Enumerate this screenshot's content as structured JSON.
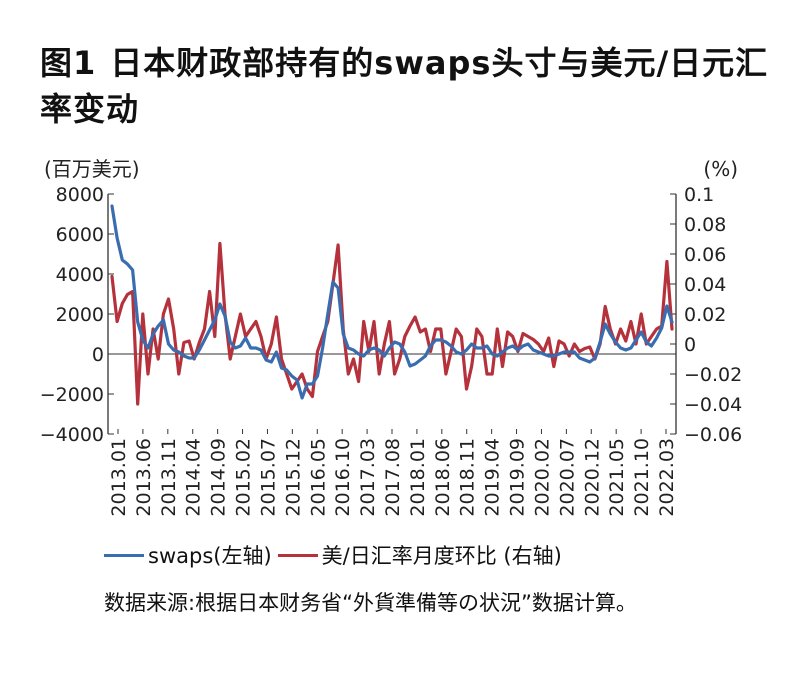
{
  "title": {
    "num": "图1",
    "text": "日本财政部持有的swaps头寸与美元/日元汇率变动"
  },
  "left_unit": "(百万美元)",
  "right_unit": "(%)",
  "legend": {
    "swaps": "swaps(左轴)",
    "fx": "美/日汇率月度环比 (右轴)"
  },
  "source": "数据来源:根据日本财务省“外貨準備等の状況”数据计算。",
  "colors": {
    "swaps": "#3a6db0",
    "fx": "#b5323c"
  },
  "chart_data": {
    "type": "line",
    "x_ticks": [
      "2013.01",
      "2013.06",
      "2013.11",
      "2014.04",
      "2014.09",
      "2015.02",
      "2015.07",
      "2015.12",
      "2016.05",
      "2016.10",
      "2017.03",
      "2017.08",
      "2018.01",
      "2018.06",
      "2018.11",
      "2019.04",
      "2019.09",
      "2020.02",
      "2020.07",
      "2020.12",
      "2021.05",
      "2021.10",
      "2022.03"
    ],
    "y_left": {
      "ticks": [
        8000,
        6000,
        4000,
        2000,
        0,
        -2000,
        -4000
      ],
      "labels": [
        "8000",
        "6000",
        "4000",
        "2000",
        "0",
        "−2000",
        "−4000"
      ],
      "lim": [
        -4000,
        8000
      ]
    },
    "y_right": {
      "ticks": [
        0.1,
        0.08,
        0.06,
        0.04,
        0.02,
        0,
        -0.02,
        -0.04,
        -0.06
      ],
      "labels": [
        "0.1",
        "0.08",
        "0.06",
        "0.04",
        "0.02",
        "0",
        "−0.02",
        "−0.04",
        "−0.06"
      ],
      "lim": [
        -0.06,
        0.1
      ]
    },
    "series": [
      {
        "name": "swaps(左轴)",
        "axis": "left",
        "values": [
          7400,
          5800,
          4700,
          4500,
          4200,
          1600,
          700,
          300,
          1000,
          1400,
          1700,
          500,
          200,
          100,
          -100,
          -200,
          -200,
          200,
          700,
          1200,
          1700,
          2500,
          1900,
          600,
          300,
          400,
          800,
          300,
          300,
          200,
          -300,
          -400,
          100,
          -700,
          -800,
          -1100,
          -1300,
          -2200,
          -1500,
          -1500,
          -1100,
          300,
          2000,
          3600,
          3300,
          1000,
          300,
          200,
          0,
          -100,
          200,
          300,
          200,
          -100,
          300,
          600,
          500,
          100,
          -600,
          -500,
          -300,
          -100,
          400,
          700,
          700,
          600,
          400,
          100,
          0,
          200,
          500,
          300,
          300,
          400,
          0,
          -100,
          100,
          300,
          400,
          200,
          400,
          500,
          200,
          100,
          0,
          -100,
          -100,
          0,
          100,
          100,
          100,
          -200,
          -300,
          -400,
          -200,
          600,
          1500,
          1000,
          600,
          300,
          200,
          300,
          700,
          1100,
          600,
          400,
          800,
          1300,
          2400,
          1600
        ]
      },
      {
        "name": "美/日汇率月度环比 (右轴)",
        "axis": "right",
        "values": [
          0.045,
          0.015,
          0.027,
          0.033,
          0.035,
          -0.04,
          0.02,
          -0.02,
          0.01,
          -0.01,
          0.02,
          0.03,
          0.01,
          -0.02,
          0.001,
          0.002,
          -0.01,
          0.001,
          0.01,
          0.035,
          0.005,
          0.067,
          0.02,
          -0.01,
          0.005,
          0.02,
          0.005,
          0.01,
          0.015,
          0.005,
          -0.01,
          0.0,
          0.018,
          -0.01,
          -0.02,
          -0.03,
          -0.025,
          -0.02,
          -0.03,
          -0.035,
          -0.005,
          0.005,
          0.015,
          0.04,
          0.066,
          0.01,
          -0.02,
          -0.01,
          -0.025,
          0.015,
          -0.005,
          0.015,
          -0.02,
          0.0,
          0.015,
          -0.02,
          -0.01,
          0.005,
          0.012,
          0.018,
          0.008,
          0.01,
          -0.005,
          0.01,
          0.01,
          -0.02,
          -0.005,
          0.01,
          0.005,
          -0.03,
          -0.015,
          0.01,
          0.005,
          -0.02,
          -0.02,
          0.01,
          -0.015,
          0.008,
          0.005,
          -0.005,
          0.007,
          0.005,
          0.003,
          0.0,
          -0.005,
          0.004,
          -0.015,
          0.002,
          0.0,
          -0.008,
          0.0,
          -0.005,
          -0.003,
          -0.002,
          -0.01,
          0.0,
          0.025,
          0.01,
          0.0,
          0.01,
          0.002,
          0.015,
          0.0,
          0.02,
          0.0,
          0.005,
          0.01,
          0.012,
          0.055,
          0.01
        ]
      }
    ]
  }
}
